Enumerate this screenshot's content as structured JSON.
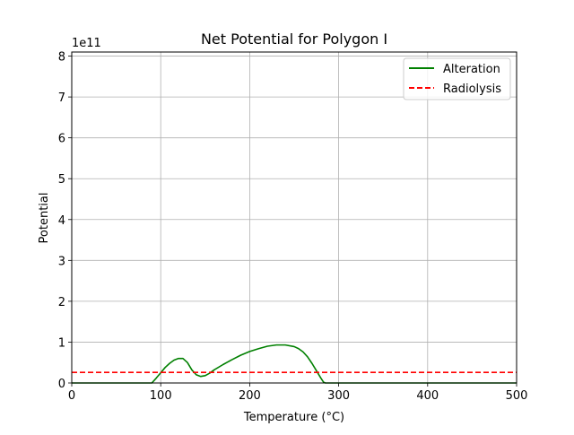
{
  "chart_data": {
    "type": "line",
    "title": "Net Potential for Polygon I",
    "xlabel": "Temperature (°C)",
    "ylabel": "Potential",
    "y_offset_text": "1e11",
    "xlim": [
      0,
      500
    ],
    "ylim": [
      0,
      8.1
    ],
    "xticks": [
      0,
      100,
      200,
      300,
      400,
      500
    ],
    "xtick_labels": [
      "0",
      "100",
      "200",
      "300",
      "400",
      "500"
    ],
    "yticks": [
      0,
      1,
      2,
      3,
      4,
      5,
      6,
      7,
      8
    ],
    "ytick_labels": [
      "0",
      "1",
      "2",
      "3",
      "4",
      "5",
      "6",
      "7",
      "8"
    ],
    "grid": true,
    "legend_position": "top-right",
    "series": [
      {
        "name": "Alteration",
        "color": "#008000",
        "style": "solid",
        "x": [
          0,
          90,
          95,
          100,
          105,
          110,
          115,
          120,
          125,
          130,
          135,
          140,
          145,
          150,
          155,
          160,
          170,
          180,
          190,
          200,
          210,
          220,
          230,
          240,
          250,
          255,
          260,
          265,
          270,
          275,
          280,
          283,
          285,
          290,
          300,
          400,
          500
        ],
        "y": [
          0,
          0,
          0.12,
          0.25,
          0.38,
          0.48,
          0.56,
          0.6,
          0.6,
          0.5,
          0.32,
          0.2,
          0.16,
          0.18,
          0.24,
          0.32,
          0.45,
          0.57,
          0.68,
          0.77,
          0.84,
          0.9,
          0.93,
          0.93,
          0.89,
          0.84,
          0.76,
          0.64,
          0.48,
          0.3,
          0.12,
          0.02,
          0,
          0,
          0,
          0,
          0
        ]
      },
      {
        "name": "Radiolysis",
        "color": "#ff0000",
        "style": "dashed",
        "x": [
          0,
          500
        ],
        "y": [
          0.26,
          0.26
        ]
      }
    ]
  }
}
